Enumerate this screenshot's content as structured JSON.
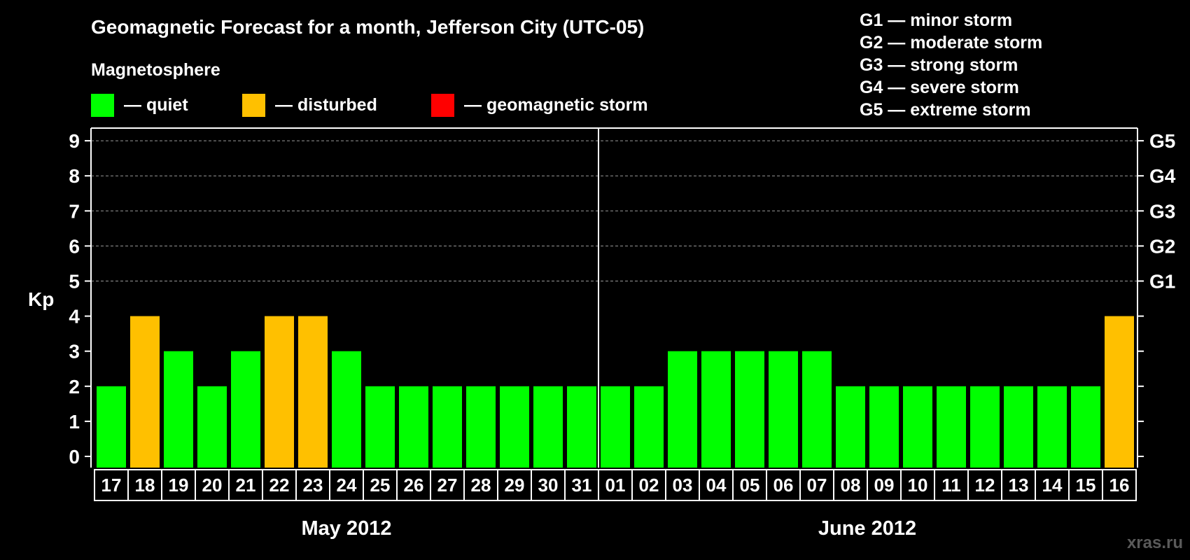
{
  "chart_data": {
    "type": "bar",
    "title": "Geomagnetic Forecast for a month, Jefferson City (UTC-05)",
    "ylabel": "Kp",
    "ylim": [
      0,
      9
    ],
    "yticks": [
      "0",
      "1",
      "2",
      "3",
      "4",
      "5",
      "6",
      "7",
      "8",
      "9"
    ],
    "storm_levels": [
      {
        "kp": 5,
        "label": "G1"
      },
      {
        "kp": 6,
        "label": "G2"
      },
      {
        "kp": 7,
        "label": "G3"
      },
      {
        "kp": 8,
        "label": "G4"
      },
      {
        "kp": 9,
        "label": "G5"
      }
    ],
    "legend_title": "Magnetosphere",
    "legend": [
      {
        "label": "— quiet",
        "color": "#00ff00"
      },
      {
        "label": "— disturbed",
        "color": "#ffc000"
      },
      {
        "label": "— geomagnetic storm",
        "color": "#ff0000"
      }
    ],
    "storm_legend": [
      "G1 — minor storm",
      "G2 — moderate storm",
      "G3 — strong storm",
      "G4 — severe storm",
      "G5 — extreme storm"
    ],
    "categories": [
      "17",
      "18",
      "19",
      "20",
      "21",
      "22",
      "23",
      "24",
      "25",
      "26",
      "27",
      "28",
      "29",
      "30",
      "31",
      "01",
      "02",
      "03",
      "04",
      "05",
      "06",
      "07",
      "08",
      "09",
      "10",
      "11",
      "12",
      "13",
      "14",
      "15",
      "16"
    ],
    "values": [
      2,
      4,
      3,
      2,
      3,
      4,
      4,
      3,
      2,
      2,
      2,
      2,
      2,
      2,
      2,
      2,
      2,
      3,
      3,
      3,
      3,
      3,
      2,
      2,
      2,
      2,
      2,
      2,
      2,
      2,
      4
    ],
    "status": [
      "quiet",
      "disturbed",
      "quiet",
      "quiet",
      "quiet",
      "disturbed",
      "disturbed",
      "quiet",
      "quiet",
      "quiet",
      "quiet",
      "quiet",
      "quiet",
      "quiet",
      "quiet",
      "quiet",
      "quiet",
      "quiet",
      "quiet",
      "quiet",
      "quiet",
      "quiet",
      "quiet",
      "quiet",
      "quiet",
      "quiet",
      "quiet",
      "quiet",
      "quiet",
      "quiet",
      "disturbed"
    ],
    "colors": {
      "quiet": "#00ff00",
      "disturbed": "#ffc000",
      "storm": "#ff0000"
    },
    "months": [
      {
        "label": "May 2012",
        "start": 0,
        "end": 14
      },
      {
        "label": "June 2012",
        "start": 15,
        "end": 30
      }
    ],
    "grid": true
  },
  "watermark": "xras.ru"
}
